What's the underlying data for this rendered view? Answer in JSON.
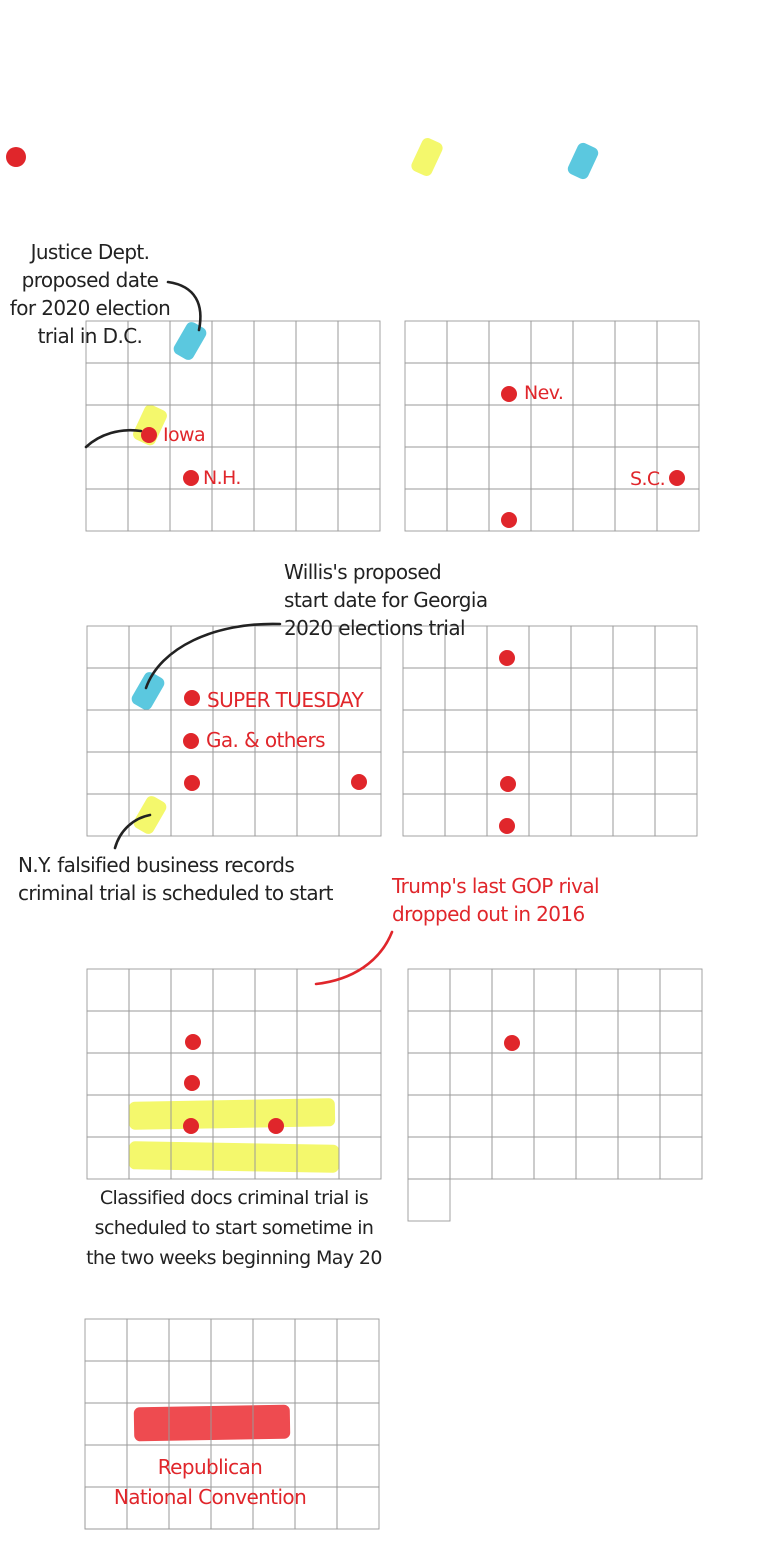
{
  "colors": {
    "grid": "#9a9a9a",
    "event_red": "#e0262b",
    "ink": "#222222",
    "highlight_yellow": "#f4f86c",
    "highlight_blue": "#5bc8df",
    "convention_red": "#ee4b50"
  },
  "legend": {
    "items": [
      {
        "name": "red-dot-legend-icon",
        "color": "#e0262b"
      },
      {
        "name": "yellow-mark-legend-icon",
        "color": "#f4f86c"
      },
      {
        "name": "blue-mark-legend-icon",
        "color": "#5bc8df"
      }
    ]
  },
  "event_labels": {
    "iowa": "Iowa",
    "nh": "N.H.",
    "nev": "Nev.",
    "sc": "S.C.",
    "super_tuesday": "SUPER TUESDAY",
    "ga_others": "Ga. & others"
  },
  "annotations": {
    "justice_dept": [
      "Justice Dept.",
      "proposed date",
      "for 2020 election",
      "trial in D.C."
    ],
    "willis": [
      "Willis's proposed",
      "start date for Georgia",
      "2020 elections trial"
    ],
    "ny_trial": [
      "N.Y. falsified business records",
      "criminal trial is scheduled to start"
    ],
    "gop_rival": [
      "Trump's last GOP rival",
      "dropped out in 2016"
    ],
    "classified_docs": [
      "Classified docs criminal trial is",
      "scheduled to start sometime in",
      "the two weeks beginning May 20"
    ],
    "convention": [
      "Republican",
      "National Convention"
    ]
  }
}
